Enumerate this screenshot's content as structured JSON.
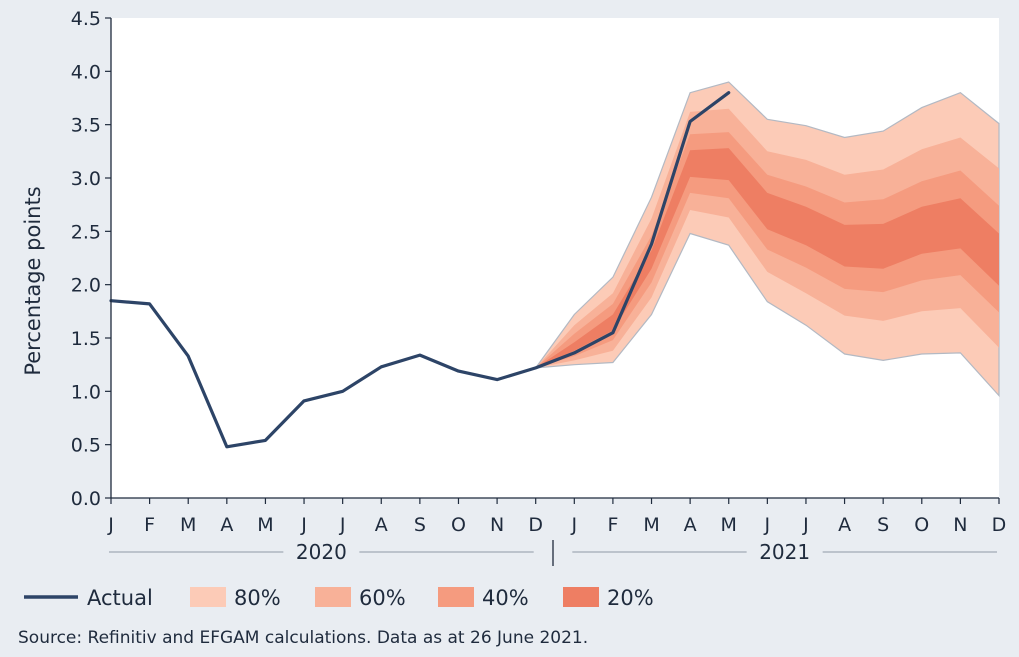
{
  "chart_data": {
    "type": "line",
    "title": "",
    "ylabel": "Percentage points",
    "xlabel": "",
    "ylim": [
      0,
      4.5
    ],
    "y_ticks": [
      "0.0",
      "0.5",
      "1.0",
      "1.5",
      "2.0",
      "2.5",
      "3.0",
      "3.5",
      "4.0",
      "4.5"
    ],
    "y_tick_values": [
      0,
      0.5,
      1,
      1.5,
      2,
      2.5,
      3,
      3.5,
      4,
      4.5
    ],
    "months": [
      "J",
      "F",
      "M",
      "A",
      "M",
      "J",
      "J",
      "A",
      "S",
      "O",
      "N",
      "D",
      "J",
      "F",
      "M",
      "A",
      "M",
      "J",
      "J",
      "A",
      "S",
      "O",
      "N",
      "D"
    ],
    "year_labels": [
      {
        "label": "2020",
        "from_index": 0,
        "to_index": 11
      },
      {
        "label": "2021",
        "from_index": 12,
        "to_index": 23
      }
    ],
    "series": [
      {
        "name": "Actual",
        "color": "#2d4467",
        "x_index": [
          0,
          1,
          2,
          3,
          4,
          5,
          6,
          7,
          8,
          9,
          10,
          11,
          12,
          13,
          14,
          15,
          16
        ],
        "values": [
          1.85,
          1.82,
          1.33,
          0.48,
          0.54,
          0.91,
          1.0,
          1.23,
          1.34,
          1.19,
          1.11,
          1.22,
          1.36,
          1.55,
          2.38,
          3.53,
          3.8
        ]
      }
    ],
    "fan": {
      "x_index": [
        11,
        12,
        13,
        14,
        15,
        16,
        17,
        18,
        19,
        20,
        21,
        22,
        23
      ],
      "bands": [
        {
          "name": "80%",
          "color": "#fccbb7",
          "lower": [
            1.22,
            1.25,
            1.27,
            1.72,
            2.48,
            2.37,
            1.84,
            1.62,
            1.35,
            1.29,
            1.35,
            1.36,
            0.96
          ],
          "upper": [
            1.22,
            1.72,
            2.07,
            2.82,
            3.8,
            3.9,
            3.55,
            3.49,
            3.38,
            3.44,
            3.66,
            3.8,
            3.51
          ]
        },
        {
          "name": "60%",
          "color": "#f8b198",
          "lower": [
            1.22,
            1.29,
            1.38,
            1.88,
            2.7,
            2.63,
            2.12,
            1.92,
            1.71,
            1.66,
            1.75,
            1.78,
            1.41
          ],
          "upper": [
            1.22,
            1.62,
            1.92,
            2.62,
            3.62,
            3.65,
            3.25,
            3.17,
            3.03,
            3.08,
            3.27,
            3.38,
            3.09
          ]
        },
        {
          "name": "40%",
          "color": "#f59b7f",
          "lower": [
            1.22,
            1.33,
            1.48,
            2.02,
            2.86,
            2.81,
            2.33,
            2.16,
            1.96,
            1.93,
            2.04,
            2.09,
            1.74
          ],
          "upper": [
            1.22,
            1.54,
            1.82,
            2.46,
            3.41,
            3.43,
            3.03,
            2.92,
            2.77,
            2.8,
            2.97,
            3.07,
            2.74
          ]
        },
        {
          "name": "20%",
          "color": "#ee7e63",
          "lower": [
            1.22,
            1.38,
            1.57,
            2.15,
            3.01,
            2.98,
            2.52,
            2.37,
            2.17,
            2.15,
            2.29,
            2.34,
            1.99
          ],
          "upper": [
            1.22,
            1.46,
            1.72,
            2.32,
            3.26,
            3.28,
            2.86,
            2.73,
            2.56,
            2.57,
            2.73,
            2.81,
            2.48
          ]
        }
      ]
    },
    "legend": [
      {
        "label": "Actual",
        "kind": "line",
        "color": "#2d4467"
      },
      {
        "label": "80%",
        "kind": "swatch",
        "color": "#fccbb7"
      },
      {
        "label": "60%",
        "kind": "swatch",
        "color": "#f8b198"
      },
      {
        "label": "40%",
        "kind": "swatch",
        "color": "#f59b7f"
      },
      {
        "label": "20%",
        "kind": "swatch",
        "color": "#ee7e63"
      }
    ],
    "legend_position": "bottom-left",
    "grid": false
  },
  "source": "Source: Refinitiv and EFGAM calculations. Data as at 26 June 2021.",
  "colors": {
    "background": "#e9edf2",
    "plot_background": "#ffffff",
    "axis": "#1f2b3d",
    "rule": "#8f99a6",
    "band_outline": "#b3b9c3"
  }
}
